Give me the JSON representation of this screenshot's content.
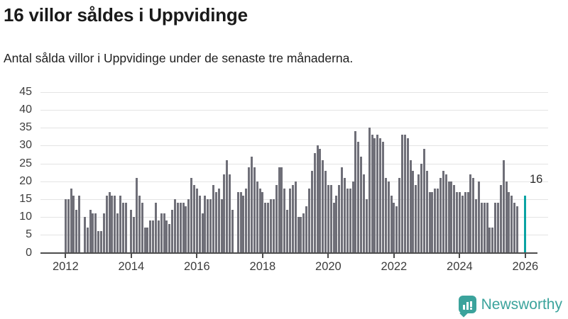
{
  "header": {
    "title": "16 villor såldes i Uppvidinge",
    "subtitle": "Antal sålda villor i Uppvidinge under de senaste tre månaderna."
  },
  "branding": {
    "name": "Newsworthy",
    "icon": "newsworthy-bar-chart-bubble-icon"
  },
  "colors": {
    "bar_default": "#6f6f78",
    "bar_highlight": "#0aa3a3",
    "gridline": "#e4e4e4",
    "axis": "#4d4d4d",
    "text": "#1a1a1a",
    "brand_teal": "#3ba39c"
  },
  "chart_data": {
    "type": "bar",
    "title": "16 villor såldes i Uppvidinge",
    "subtitle": "Antal sålda villor i Uppvidinge under de senaste tre månaderna.",
    "xlabel": "",
    "ylabel": "",
    "x_start_month": "2012-01",
    "x_interval": "monthly",
    "note_zero_means_no_bar": true,
    "values": [
      15,
      15,
      18,
      16,
      12,
      16,
      0,
      10,
      7,
      12,
      11,
      11,
      6,
      6,
      11,
      16,
      17,
      16,
      16,
      11,
      16,
      14,
      14,
      0,
      12,
      10,
      21,
      16,
      14,
      7,
      7,
      9,
      9,
      14,
      9,
      11,
      11,
      9,
      8,
      12,
      15,
      14,
      14,
      14,
      13,
      15,
      21,
      19,
      18,
      16,
      11,
      16,
      15,
      15,
      19,
      17,
      18,
      15,
      22,
      26,
      22,
      12,
      0,
      17,
      17,
      16,
      18,
      24,
      27,
      24,
      20,
      18,
      17,
      14,
      14,
      15,
      15,
      19,
      24,
      24,
      18,
      12,
      18,
      19,
      20,
      10,
      10,
      11,
      13,
      18,
      23,
      28,
      30,
      29,
      26,
      23,
      19,
      19,
      14,
      16,
      19,
      24,
      21,
      18,
      18,
      20,
      34,
      31,
      27,
      22,
      15,
      35,
      33,
      32,
      33,
      32,
      31,
      21,
      20,
      16,
      14,
      13,
      21,
      33,
      33,
      32,
      26,
      23,
      19,
      22,
      25,
      29,
      23,
      17,
      17,
      18,
      18,
      21,
      23,
      22,
      20,
      20,
      19,
      17,
      17,
      16,
      17,
      17,
      22,
      21,
      15,
      20,
      14,
      14,
      14,
      7,
      7,
      14,
      14,
      19,
      26,
      20,
      17,
      16,
      14,
      13,
      0,
      0,
      16
    ],
    "highlight_last_bar": {
      "value": 16,
      "label": "16"
    },
    "y_ticks": [
      0,
      5,
      10,
      15,
      20,
      25,
      30,
      35,
      40,
      45
    ],
    "ylim": [
      0,
      45
    ],
    "x_tick_labels": [
      "2012",
      "2014",
      "2016",
      "2018",
      "2020",
      "2022",
      "2024",
      "2026"
    ],
    "grid": "horizontal",
    "legend": "none"
  }
}
